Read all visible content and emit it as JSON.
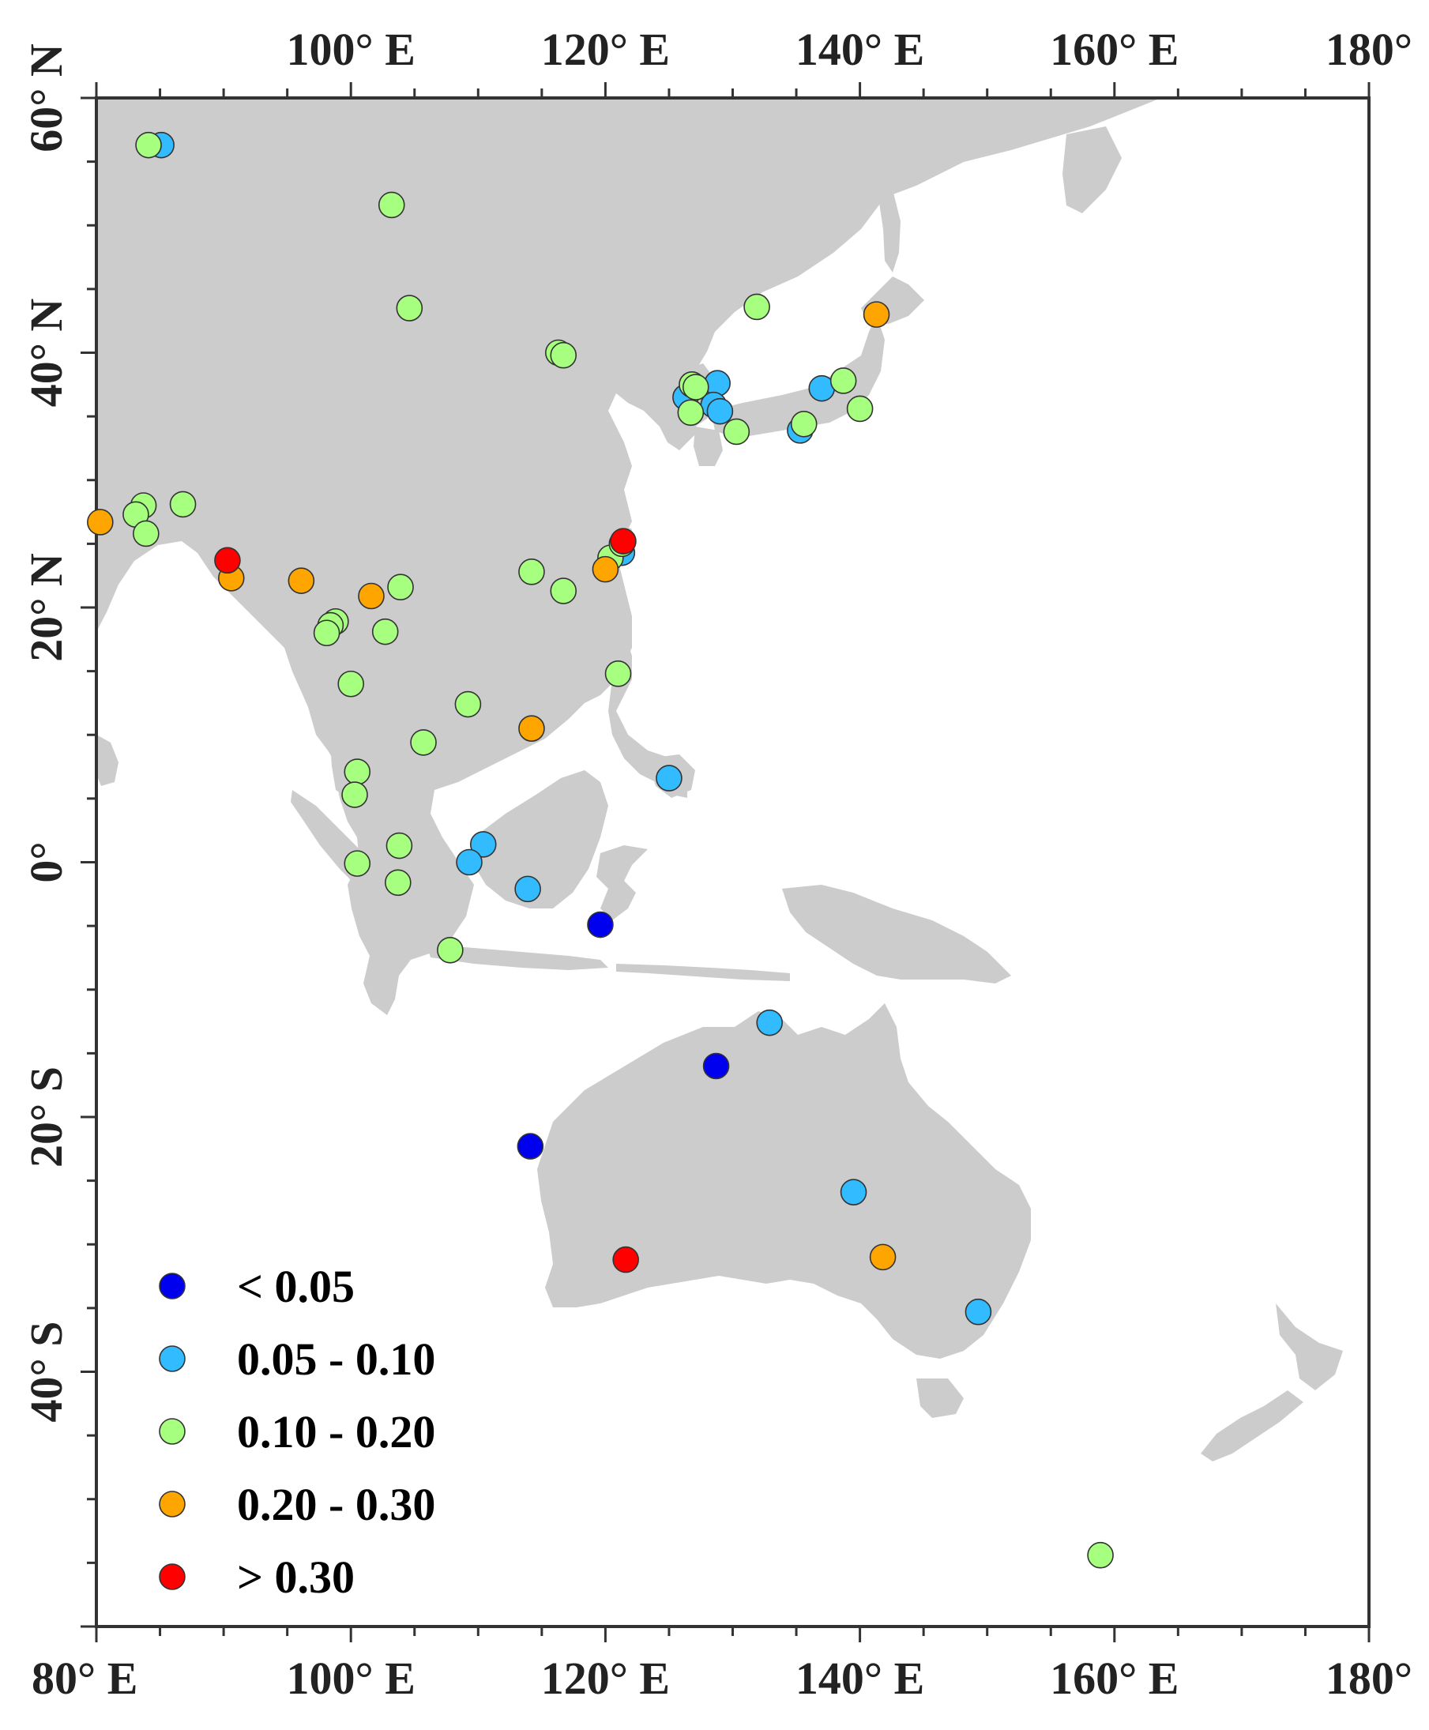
{
  "chart_data": {
    "type": "scatter",
    "title": "",
    "x_ticks": [
      {
        "value": 100,
        "label": "100° E"
      },
      {
        "value": 120,
        "label": "120° E"
      },
      {
        "value": 140,
        "label": "140° E"
      },
      {
        "value": 160,
        "label": "160° E"
      },
      {
        "value": 180,
        "label": "180°"
      }
    ],
    "x_ticks_bottom": [
      {
        "value": 80,
        "label": "80° E"
      },
      {
        "value": 100,
        "label": "100° E"
      },
      {
        "value": 120,
        "label": "120° E"
      },
      {
        "value": 140,
        "label": "140° E"
      },
      {
        "value": 160,
        "label": "160° E"
      },
      {
        "value": 180,
        "label": "180°"
      }
    ],
    "y_ticks": [
      {
        "value": 60,
        "label": "60° N"
      },
      {
        "value": 40,
        "label": "40° N"
      },
      {
        "value": 20,
        "label": "20° N"
      },
      {
        "value": 0,
        "label": "0°"
      },
      {
        "value": -20,
        "label": "20° S"
      },
      {
        "value": -40,
        "label": "40° S"
      }
    ],
    "xlim": [
      80,
      180
    ],
    "ylim": [
      -60,
      60
    ],
    "legend": [
      {
        "label": "< 0.05",
        "color": "#0000ee"
      },
      {
        "label": "0.05 - 0.10",
        "color": "#33bbff"
      },
      {
        "label": "0.10 - 0.20",
        "color": "#a6ff7f"
      },
      {
        "label": "0.20 - 0.30",
        "color": "#ffa500"
      },
      {
        "label": "> 0.30",
        "color": "#ff0000"
      }
    ],
    "series": [
      {
        "name": "< 0.05",
        "color": "#0000ee",
        "points": [
          [
            119.6,
            -4.9
          ],
          [
            128.7,
            -16.0
          ],
          [
            114.1,
            -22.3
          ]
        ]
      },
      {
        "name": "0.05 - 0.10",
        "color": "#33bbff",
        "points": [
          [
            85.1,
            56.3
          ],
          [
            128.8,
            37.6
          ],
          [
            126.3,
            36.5
          ],
          [
            128.5,
            35.9
          ],
          [
            129.0,
            35.4
          ],
          [
            137.0,
            37.2
          ],
          [
            135.3,
            33.9
          ],
          [
            121.3,
            24.3
          ],
          [
            125.0,
            6.6
          ],
          [
            110.4,
            1.4
          ],
          [
            109.3,
            0.0
          ],
          [
            113.9,
            -2.1
          ],
          [
            132.9,
            -12.6
          ],
          [
            139.5,
            -25.9
          ],
          [
            149.3,
            -35.3
          ]
        ]
      },
      {
        "name": "0.10 - 0.20",
        "color": "#a6ff7f",
        "points": [
          [
            84.1,
            56.3
          ],
          [
            103.2,
            51.6
          ],
          [
            104.6,
            43.5
          ],
          [
            116.3,
            40.0
          ],
          [
            116.7,
            39.8
          ],
          [
            131.9,
            43.6
          ],
          [
            126.8,
            37.5
          ],
          [
            127.1,
            37.3
          ],
          [
            126.7,
            35.3
          ],
          [
            130.3,
            33.8
          ],
          [
            135.6,
            34.4
          ],
          [
            138.7,
            37.8
          ],
          [
            140.0,
            35.6
          ],
          [
            83.7,
            28.0
          ],
          [
            83.1,
            27.3
          ],
          [
            86.8,
            28.1
          ],
          [
            83.9,
            25.8
          ],
          [
            114.2,
            22.8
          ],
          [
            116.7,
            21.3
          ],
          [
            120.4,
            23.9
          ],
          [
            121.3,
            25.0
          ],
          [
            103.9,
            21.6
          ],
          [
            98.8,
            18.9
          ],
          [
            98.4,
            18.6
          ],
          [
            98.1,
            18.0
          ],
          [
            102.7,
            18.1
          ],
          [
            100.0,
            14.0
          ],
          [
            109.2,
            12.4
          ],
          [
            105.7,
            9.4
          ],
          [
            100.5,
            7.1
          ],
          [
            100.3,
            5.3
          ],
          [
            103.8,
            1.3
          ],
          [
            100.5,
            -0.1
          ],
          [
            103.7,
            -1.6
          ],
          [
            107.8,
            -6.9
          ],
          [
            121.0,
            14.8
          ],
          [
            158.9,
            -54.4
          ]
        ]
      },
      {
        "name": "0.20 - 0.30",
        "color": "#ffa500",
        "points": [
          [
            80.3,
            26.7
          ],
          [
            90.6,
            22.3
          ],
          [
            96.1,
            22.1
          ],
          [
            101.6,
            20.9
          ],
          [
            114.2,
            10.5
          ],
          [
            141.3,
            43.0
          ],
          [
            120.0,
            23.0
          ],
          [
            141.8,
            -31.0
          ]
        ]
      },
      {
        "name": "> 0.30",
        "color": "#ff0000",
        "points": [
          [
            90.3,
            23.7
          ],
          [
            121.4,
            25.2
          ],
          [
            121.6,
            -31.2
          ]
        ]
      }
    ]
  }
}
